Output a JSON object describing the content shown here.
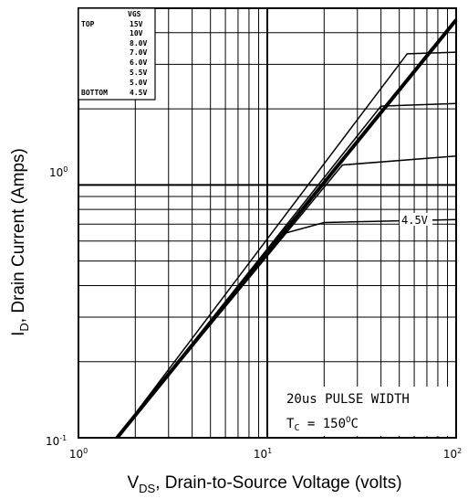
{
  "chart_data": {
    "type": "line",
    "xscale": "log",
    "yscale": "log",
    "xlim": [
      1,
      100
    ],
    "ylim": [
      0.1,
      5
    ],
    "grid": true,
    "xlabel": {
      "main": "V",
      "sub": "DS",
      "rest": ", Drain-to-Source Voltage (volts)"
    },
    "ylabel": {
      "main": "I",
      "sub": "D",
      "rest": ", Drain Current (Amps)"
    },
    "x_ticks": [
      {
        "value": 1,
        "base": "10",
        "exp": "0"
      },
      {
        "value": 10,
        "base": "10",
        "exp": "1"
      },
      {
        "value": 100,
        "base": "10",
        "exp": "2"
      }
    ],
    "y_ticks": [
      {
        "value": 0.1,
        "base": "10",
        "exp": "-1"
      },
      {
        "value": 1,
        "base": "10",
        "exp": "0"
      }
    ],
    "legend": {
      "position": "top-left",
      "header": "VGS",
      "rows": [
        {
          "tag": "TOP",
          "value": "15V"
        },
        {
          "tag": "",
          "value": "10V"
        },
        {
          "tag": "",
          "value": "8.0V"
        },
        {
          "tag": "",
          "value": "7.0V"
        },
        {
          "tag": "",
          "value": "6.0V"
        },
        {
          "tag": "",
          "value": "5.5V"
        },
        {
          "tag": "",
          "value": "5.0V"
        },
        {
          "tag": "BOTTOM",
          "value": "4.5V"
        }
      ]
    },
    "annotations": {
      "curve_label": "4.5V",
      "pulse": "20us PULSE WIDTH",
      "tc_main": "T",
      "tc_sub": "C",
      "tc_value": " = 150",
      "tc_sup": "O",
      "tc_unit": "C"
    },
    "series": [
      {
        "values": [
          [
            1.6,
            0.1
          ],
          [
            100,
            4.5
          ]
        ]
      },
      {
        "values": [
          [
            1.6,
            0.1
          ],
          [
            100,
            4.5
          ]
        ]
      },
      {
        "values": [
          [
            1.6,
            0.1
          ],
          [
            55,
            3.3
          ],
          [
            100,
            3.35
          ]
        ]
      },
      {
        "values": [
          [
            1.6,
            0.1
          ],
          [
            40,
            2.05
          ],
          [
            100,
            2.1
          ]
        ]
      },
      {
        "values": [
          [
            1.6,
            0.1
          ],
          [
            25,
            1.2
          ],
          [
            100,
            1.3
          ]
        ]
      },
      {
        "values": [
          [
            1.6,
            0.1
          ],
          [
            12,
            0.64
          ],
          [
            20,
            0.71
          ],
          [
            100,
            0.73
          ]
        ]
      }
    ]
  }
}
